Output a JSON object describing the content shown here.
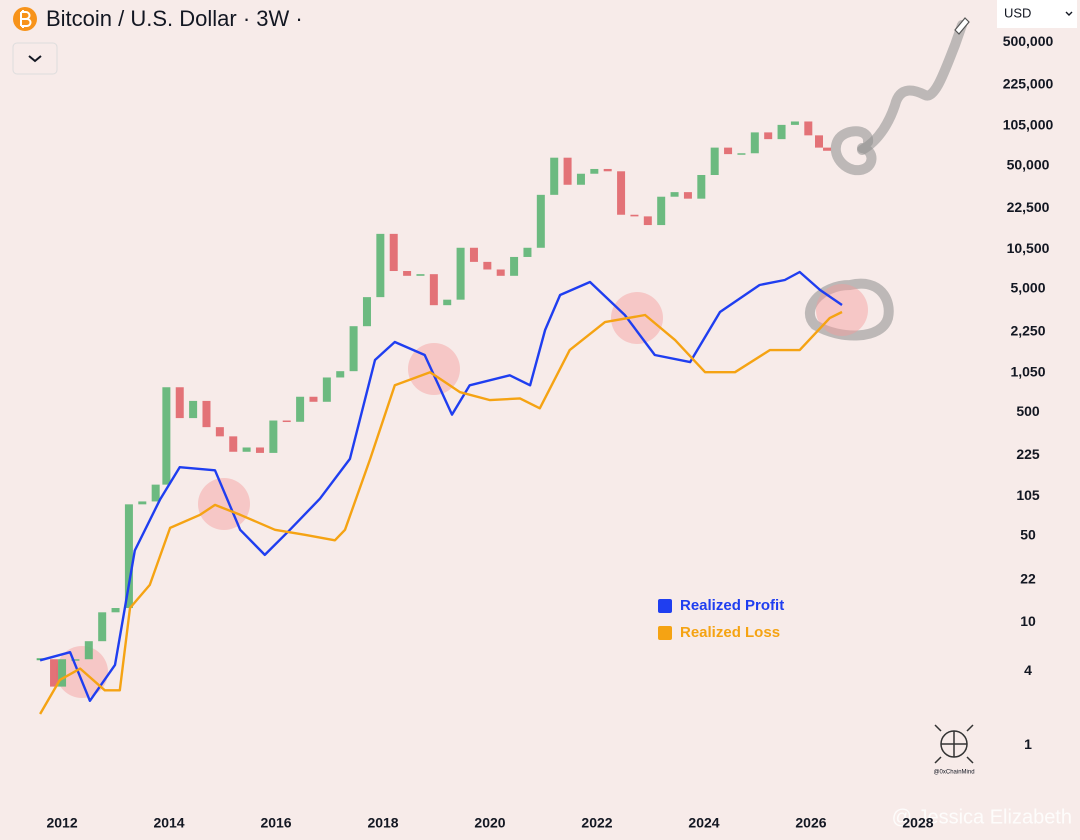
{
  "chart_data": {
    "type": "candlestick",
    "title": "Bitcoin / U.S. Dollar · 3W ·",
    "currency": "USD",
    "watermark": "@ Jessica Elizabeth",
    "logo_caption": "@0xChainMind",
    "log_y": true,
    "grid": false,
    "legend": "lower-center",
    "xlim": [
      2010.84,
      2029.44
    ],
    "xticks": [
      2012,
      2014,
      2016,
      2018,
      2020,
      2022,
      2024,
      2026,
      2028
    ],
    "ylim": [
      0.3,
      1100000
    ],
    "yticks": [
      {
        "value": 500000,
        "label": "500,000"
      },
      {
        "value": 225000,
        "label": "225,000"
      },
      {
        "value": 105000,
        "label": "105,000"
      },
      {
        "value": 50000,
        "label": "50,000"
      },
      {
        "value": 22500,
        "label": "22,500"
      },
      {
        "value": 10500,
        "label": "10,500"
      },
      {
        "value": 5000,
        "label": "5,000"
      },
      {
        "value": 2250,
        "label": "2,250"
      },
      {
        "value": 1050,
        "label": "1,050"
      },
      500,
      225,
      105,
      50,
      22,
      10,
      4,
      1
    ],
    "price": {
      "up_color": "#5cb574",
      "down_color": "#e0656a",
      "x": [
        2011.6,
        2011.85,
        2012.0,
        2012.25,
        2012.5,
        2012.75,
        2013.0,
        2013.25,
        2013.5,
        2013.75,
        2013.95,
        2014.2,
        2014.45,
        2014.7,
        2014.95,
        2015.2,
        2015.45,
        2015.7,
        2015.95,
        2016.2,
        2016.45,
        2016.7,
        2016.95,
        2017.2,
        2017.45,
        2017.7,
        2017.95,
        2018.2,
        2018.45,
        2018.7,
        2018.95,
        2019.2,
        2019.45,
        2019.7,
        2019.95,
        2020.2,
        2020.45,
        2020.7,
        2020.95,
        2021.2,
        2021.45,
        2021.7,
        2021.95,
        2022.2,
        2022.45,
        2022.7,
        2022.95,
        2023.2,
        2023.45,
        2023.7,
        2023.95,
        2024.2,
        2024.45,
        2024.7,
        2024.95,
        2025.2,
        2025.45,
        2025.7,
        2025.95,
        2026.15,
        2026.3
      ],
      "values": [
        5,
        3,
        5,
        5,
        7,
        12,
        13,
        90,
        95,
        130,
        800,
        450,
        620,
        380,
        320,
        240,
        260,
        235,
        430,
        420,
        670,
        610,
        960,
        1080,
        2500,
        4300,
        14000,
        7000,
        6400,
        6600,
        3700,
        4100,
        10800,
        8300,
        7200,
        6400,
        9100,
        10800,
        29000,
        58000,
        35000,
        43000,
        47000,
        45000,
        20000,
        19400,
        16500,
        28000,
        30500,
        27000,
        42000,
        70000,
        62000,
        63000,
        93000,
        82000,
        107000,
        114000,
        88000,
        70000,
        66000
      ]
    },
    "series": [
      {
        "name": "Realized Profit",
        "color": "#1f3ef0",
        "x": [
          2011.59,
          2012.15,
          2012.52,
          2012.99,
          2013.36,
          2013.83,
          2014.2,
          2014.86,
          2015.33,
          2015.79,
          2016.26,
          2016.82,
          2017.38,
          2017.85,
          2018.22,
          2018.78,
          2019.29,
          2019.62,
          2020.37,
          2020.75,
          2021.03,
          2021.31,
          2021.87,
          2022.52,
          2023.08,
          2023.74,
          2024.3,
          2025.04,
          2025.51,
          2025.79,
          2026.17,
          2026.58
        ],
        "values": [
          4.9,
          5.7,
          2.3,
          4.5,
          38,
          98,
          180,
          170,
          56,
          35,
          56,
          100,
          210,
          1330,
          1860,
          1460,
          480,
          830,
          1000,
          830,
          2330,
          4470,
          5700,
          3080,
          1460,
          1280,
          3260,
          5390,
          5920,
          6870,
          4910,
          3710
        ]
      },
      {
        "name": "Realized Loss",
        "color": "#f5a313",
        "x": [
          2011.59,
          2011.96,
          2012.34,
          2012.8,
          2013.08,
          2013.27,
          2013.64,
          2014.02,
          2014.58,
          2014.86,
          2015.33,
          2015.98,
          2016.54,
          2017.1,
          2017.29,
          2017.76,
          2018.22,
          2018.88,
          2019.44,
          2020.0,
          2020.56,
          2020.93,
          2021.49,
          2022.15,
          2022.9,
          2023.46,
          2024.02,
          2024.58,
          2025.23,
          2025.79,
          2026.35,
          2026.58
        ],
        "values": [
          1.8,
          3.4,
          4.2,
          2.8,
          2.8,
          13,
          20,
          58,
          74,
          89,
          74,
          56,
          51,
          46,
          56,
          210,
          830,
          1060,
          730,
          630,
          650,
          540,
          1600,
          2700,
          3080,
          1930,
          1060,
          1060,
          1600,
          1600,
          2910,
          3260
        ]
      }
    ]
  }
}
